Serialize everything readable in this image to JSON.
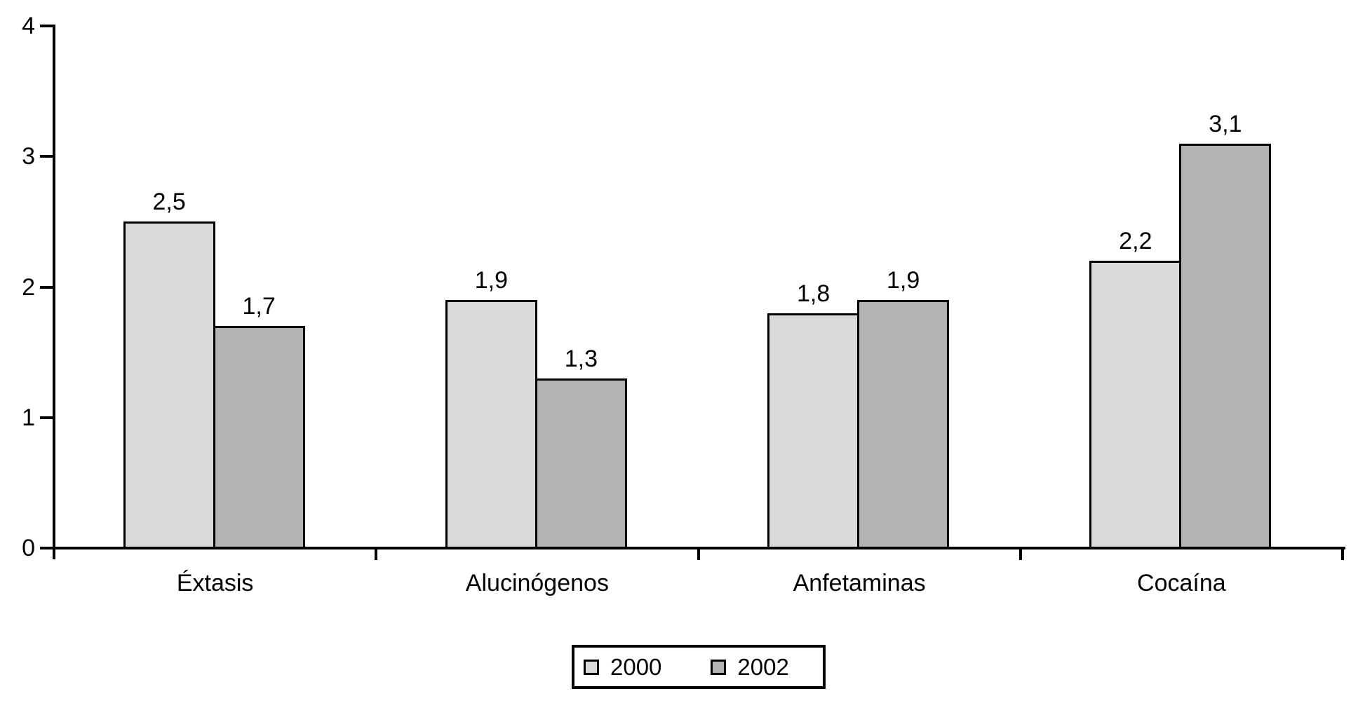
{
  "chart_data": {
    "type": "bar",
    "categories": [
      "Éxtasis",
      "Alucinógenos",
      "Anfetaminas",
      "Cocaína"
    ],
    "series": [
      {
        "name": "2000",
        "values": [
          2.5,
          1.9,
          1.8,
          2.2
        ],
        "labels": [
          "2,5",
          "1,9",
          "1,8",
          "2,2"
        ],
        "color": "#d9d9d9"
      },
      {
        "name": "2002",
        "values": [
          1.7,
          1.3,
          1.9,
          3.1
        ],
        "labels": [
          "1,7",
          "1,3",
          "1,9",
          "3,1"
        ],
        "color": "#b3b3b3"
      }
    ],
    "title": "",
    "xlabel": "",
    "ylabel": "",
    "ylim": [
      0,
      4
    ],
    "yticks": [
      0,
      1,
      2,
      3,
      4
    ],
    "ytick_labels": [
      "0",
      "1",
      "2",
      "3",
      "4"
    ],
    "grid": false,
    "value_label_decimal_separator": ",",
    "legend": {
      "position": "bottom-center",
      "items": [
        "2000",
        "2002"
      ]
    }
  },
  "colors": {
    "series_2000": "#d9d9d9",
    "series_2002": "#b3b3b3",
    "axis": "#000000",
    "text": "#000000",
    "background": "#ffffff"
  }
}
